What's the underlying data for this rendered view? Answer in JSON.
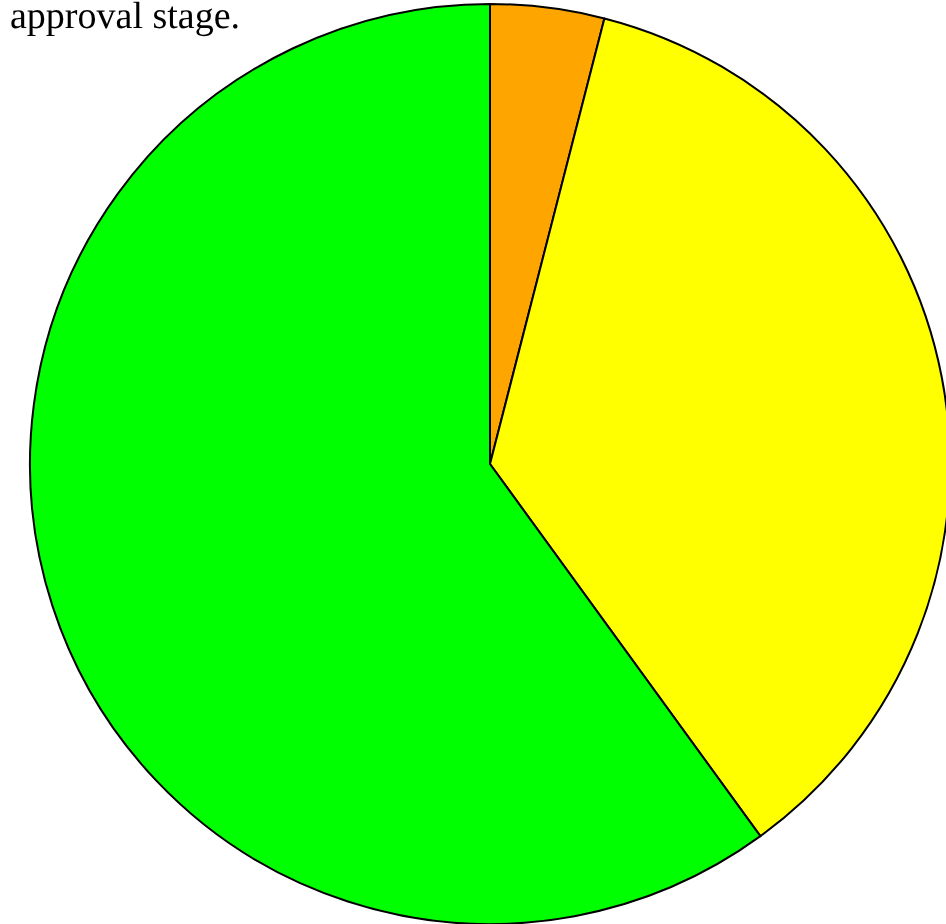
{
  "chart_data": {
    "type": "pie",
    "title": "approval stage.",
    "categories": [
      null,
      null,
      null
    ],
    "values": [
      4,
      36,
      60
    ],
    "colors": [
      "#ffa500",
      "#ffff00",
      "#00ff00"
    ]
  }
}
